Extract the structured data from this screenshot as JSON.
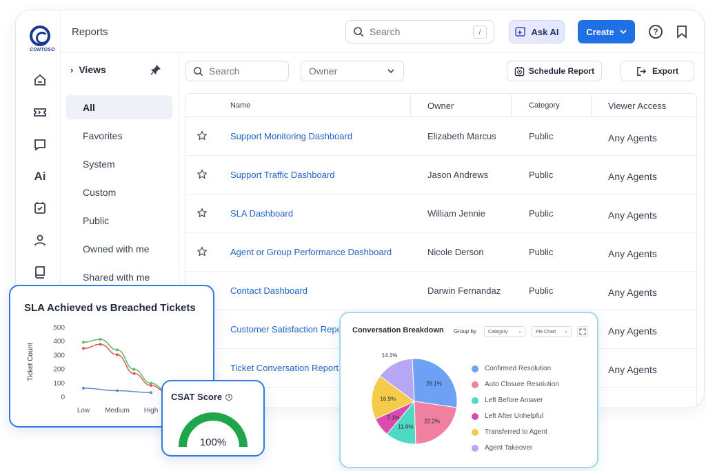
{
  "brand": {
    "logo_text": "CONTOSO"
  },
  "header": {
    "title": "Reports",
    "search_placeholder": "Search",
    "search_shortcut": "/",
    "ask_ai_label": "Ask AI",
    "create_label": "Create"
  },
  "rail": {
    "ai_label": "Ai"
  },
  "views": {
    "heading": "Views",
    "items": [
      "All",
      "Favorites",
      "System",
      "Custom",
      "Public",
      "Owned with me",
      "Shared with me"
    ],
    "active": "All"
  },
  "toolbar": {
    "search_placeholder": "Search",
    "owner_placeholder": "Owner",
    "schedule_label": "Schedule Report",
    "export_label": "Export"
  },
  "table": {
    "columns": {
      "name": "Name",
      "owner": "Owner",
      "category": "Category",
      "access": "Viewer Access"
    },
    "rows": [
      {
        "name": "Support Monitoring Dashboard",
        "owner": "Elizabeth Marcus",
        "category": "Public",
        "access": "Any Agents"
      },
      {
        "name": "Support Traffic Dashboard",
        "owner": "Jason Andrews",
        "category": "Public",
        "access": "Any Agents"
      },
      {
        "name": "SLA Dashboard",
        "owner": "William Jennie",
        "category": "Public",
        "access": "Any Agents"
      },
      {
        "name": "Agent or Group Performance Dashboard",
        "owner": "Nicole Derson",
        "category": "Public",
        "access": "Any Agents"
      },
      {
        "name": "Contact Dashboard",
        "owner": "Darwin Fernandaz",
        "category": "Public",
        "access": "Any Agents"
      },
      {
        "name": "Customer Satisfaction Report",
        "owner": "",
        "category": "",
        "access": "Any Agents"
      },
      {
        "name": "Ticket Conversation Report",
        "owner": "",
        "category": "",
        "access": "Any Agents"
      }
    ]
  },
  "sla_widget": {
    "title": "SLA Achieved vs Breached Tickets"
  },
  "csat_widget": {
    "title": "CSAT Score",
    "value": "100%",
    "fraction": 1.0,
    "color": "#1fa64a"
  },
  "conversation_widget": {
    "title": "Conversation Breakdown",
    "group_by_label": "Group by",
    "group_select": "Category",
    "chart_select": "Pie Chart"
  },
  "chart_data": [
    {
      "type": "line",
      "title": "SLA Achieved vs Breached Tickets",
      "xlabel": "",
      "ylabel": "Ticket Count",
      "categories": [
        "Low",
        "Medium",
        "High"
      ],
      "yticks": [
        0,
        100,
        200,
        300,
        400,
        500
      ],
      "ylim": [
        0,
        500
      ],
      "series": [
        {
          "color": "#5cba6d",
          "x": [
            0,
            0.5,
            1,
            1.5,
            2,
            2.45
          ],
          "values": [
            390,
            410,
            335,
            195,
            95,
            45
          ]
        },
        {
          "color": "#e05a57",
          "x": [
            0,
            0.5,
            1,
            1.5,
            2,
            2.45
          ],
          "values": [
            345,
            375,
            300,
            165,
            80,
            35
          ]
        },
        {
          "color": "#6a86c8",
          "x": [
            0,
            1,
            2
          ],
          "values": [
            60,
            42,
            28
          ]
        }
      ],
      "grid": false,
      "legend": "none"
    },
    {
      "type": "pie",
      "title": "Conversation Breakdown",
      "slices": [
        {
          "label": "Confirmed Resolution",
          "value": 28.1,
          "display": "28.1%",
          "color": "#6ea0f6"
        },
        {
          "label": "Auto Closure Resolution",
          "value": 22.2,
          "display": "22.2%",
          "color": "#f07fa0"
        },
        {
          "label": "Left Before Answer",
          "value": 11.6,
          "display": "11.6%",
          "color": "#4fd8c2"
        },
        {
          "label": "Left After Unhelpful",
          "value": 7.1,
          "display": "7.1%",
          "color": "#d94bb0"
        },
        {
          "label": "Transferred to Agent",
          "value": 16.9,
          "display": "16.9%",
          "color": "#f5cc4a"
        },
        {
          "label": "Agent Takeover",
          "value": 14.1,
          "display": "14.1%",
          "color": "#b7a7f2"
        }
      ],
      "legend": "right"
    }
  ]
}
